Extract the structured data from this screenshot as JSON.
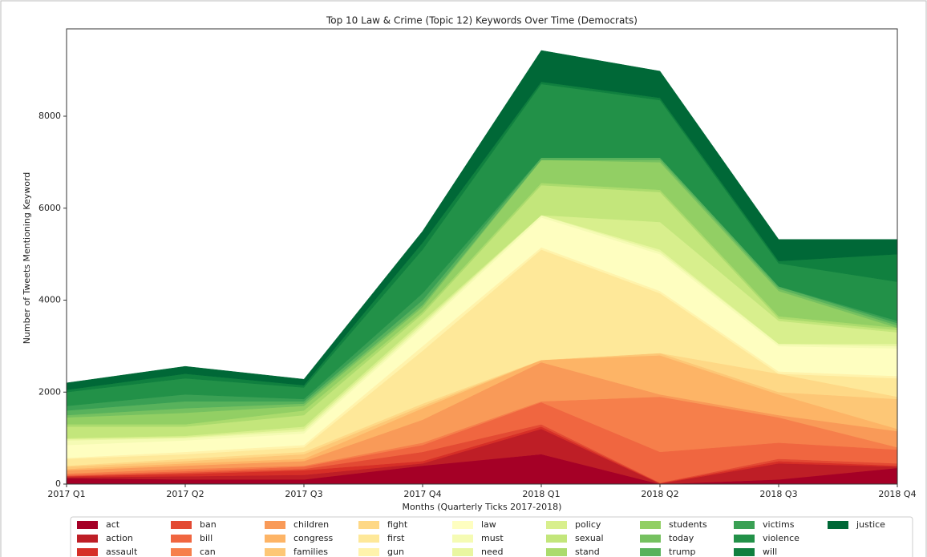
{
  "chart_data": {
    "type": "area",
    "stacked": true,
    "title": "Top 10 Law & Crime (Topic 12) Keywords Over Time (Democrats)",
    "x_label": "Months (Quarterly Ticks 2017-2018)",
    "y_label": "Number of Tweets Mentioning Keyword",
    "categories": [
      "2017 Q1",
      "2017 Q2",
      "2017 Q3",
      "2017 Q4",
      "2018 Q1",
      "2018 Q2",
      "2018 Q3",
      "2018 Q4"
    ],
    "ylim": [
      0,
      9900
    ],
    "yticks": [
      0,
      2000,
      4000,
      6000,
      8000
    ],
    "legend": "bottom",
    "series": [
      {
        "name": "act",
        "color": "#a50026",
        "values": [
          130,
          100,
          100,
          400,
          650,
          0,
          100,
          350
        ]
      },
      {
        "name": "action",
        "color": "#be1e26",
        "values": [
          20,
          70,
          100,
          50,
          550,
          10,
          350,
          30
        ]
      },
      {
        "name": "assault",
        "color": "#d62f27",
        "values": [
          20,
          50,
          100,
          50,
          50,
          10,
          50,
          20
        ]
      },
      {
        "name": "ban",
        "color": "#e34a33",
        "values": [
          10,
          30,
          30,
          200,
          50,
          10,
          50,
          50
        ]
      },
      {
        "name": "bill",
        "color": "#f06640",
        "values": [
          20,
          30,
          50,
          150,
          480,
          670,
          350,
          300
        ]
      },
      {
        "name": "can",
        "color": "#f67f4b",
        "values": [
          30,
          50,
          20,
          50,
          20,
          1200,
          550,
          50
        ]
      },
      {
        "name": "children",
        "color": "#f99a58",
        "values": [
          70,
          70,
          100,
          500,
          850,
          50,
          50,
          350
        ]
      },
      {
        "name": "congress",
        "color": "#fdb466",
        "values": [
          30,
          50,
          50,
          250,
          50,
          850,
          450,
          50
        ]
      },
      {
        "name": "families",
        "color": "#fdc776",
        "values": [
          50,
          50,
          100,
          50,
          0,
          50,
          50,
          650
        ]
      },
      {
        "name": "fight",
        "color": "#fed886",
        "values": [
          20,
          50,
          50,
          50,
          0,
          0,
          400,
          50
        ]
      },
      {
        "name": "first",
        "color": "#fee899",
        "values": [
          150,
          100,
          100,
          1150,
          2400,
          1300,
          0,
          400
        ]
      },
      {
        "name": "gun",
        "color": "#fff3ac",
        "values": [
          20,
          50,
          50,
          100,
          50,
          50,
          50,
          50
        ]
      },
      {
        "name": "law",
        "color": "#fefec0",
        "values": [
          280,
          250,
          250,
          400,
          650,
          800,
          550,
          600
        ]
      },
      {
        "name": "must",
        "color": "#f5fbb4",
        "values": [
          100,
          50,
          50,
          50,
          50,
          50,
          50,
          50
        ]
      },
      {
        "name": "need",
        "color": "#e9f6a1",
        "values": [
          30,
          20,
          50,
          50,
          0,
          50,
          0,
          50
        ]
      },
      {
        "name": "policy",
        "color": "#d8ef8d",
        "values": [
          20,
          30,
          50,
          50,
          0,
          600,
          500,
          250
        ]
      },
      {
        "name": "sexual",
        "color": "#c3e67b",
        "values": [
          250,
          200,
          250,
          150,
          650,
          650,
          50,
          50
        ]
      },
      {
        "name": "stand",
        "color": "#abdb6d",
        "values": [
          50,
          50,
          100,
          50,
          50,
          50,
          50,
          50
        ]
      },
      {
        "name": "students",
        "color": "#92cf64",
        "values": [
          150,
          250,
          100,
          100,
          500,
          600,
          550,
          0
        ]
      },
      {
        "name": "today",
        "color": "#76c160",
        "values": [
          50,
          100,
          50,
          50,
          0,
          50,
          50,
          50
        ]
      },
      {
        "name": "trump",
        "color": "#58b25c",
        "values": [
          100,
          150,
          50,
          100,
          50,
          50,
          50,
          50
        ]
      },
      {
        "name": "victims",
        "color": "#3aa054",
        "values": [
          100,
          150,
          50,
          150,
          0,
          0,
          0,
          50
        ]
      },
      {
        "name": "violence",
        "color": "#229148",
        "values": [
          300,
          350,
          250,
          950,
          1600,
          1250,
          500,
          850
        ]
      },
      {
        "name": "will",
        "color": "#10803f",
        "values": [
          50,
          100,
          50,
          150,
          50,
          50,
          50,
          600
        ]
      },
      {
        "name": "justice",
        "color": "#006837",
        "values": [
          150,
          160,
          130,
          250,
          680,
          580,
          470,
          320
        ]
      }
    ]
  }
}
